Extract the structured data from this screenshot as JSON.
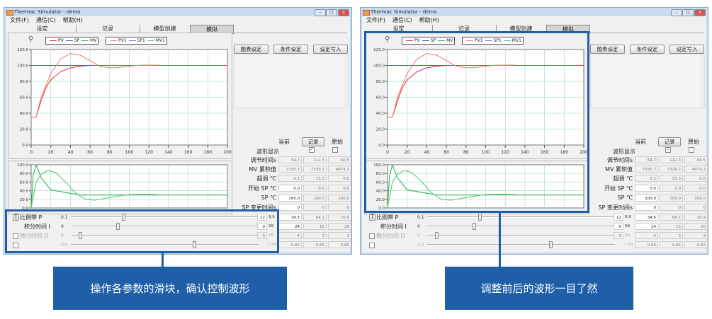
{
  "window": {
    "title": "Thermac Simulator - demo",
    "menu": [
      "文件(F)",
      "通信(C)",
      "帮助(H)"
    ],
    "tabs": [
      {
        "label": "设定"
      },
      {
        "label": "记录"
      },
      {
        "label": "模型创建"
      },
      {
        "label": "模拟",
        "active": true
      }
    ],
    "legend_current": [
      {
        "name": "PV",
        "color": "#e8383b"
      },
      {
        "name": "SP",
        "color": "#3a5fc8"
      },
      {
        "name": "MV",
        "color": "#2fb35a"
      }
    ],
    "legend_record": [
      {
        "name": "PV1",
        "color": "#f08080"
      },
      {
        "name": "SP1",
        "color": "#6a7fd0"
      },
      {
        "name": "MV1",
        "color": "#5cc87a"
      }
    ],
    "buttons": {
      "chart_settings": "图表设定",
      "condition_settings": "条件设定",
      "write_settings": "设定写入",
      "record": "记录"
    },
    "table": {
      "headers": {
        "current": "当前",
        "original": "原始"
      },
      "waveform_label": "波形显示",
      "waveform_record_checked": true,
      "waveform_original_checked": false,
      "rows": [
        {
          "label": "调节时间s",
          "values": [
            "54.7",
            "112.3",
            "60.5"
          ],
          "editable": false
        },
        {
          "label": "MV 累积值",
          "values": [
            "7155.7",
            "7329.2",
            "4074.2"
          ],
          "editable": false
        },
        {
          "label": "超调 ℃",
          "values": [
            "0.1",
            "15.3",
            "0.0"
          ],
          "editable": false
        },
        {
          "label": "开始 SP ℃",
          "values": [
            "0.0",
            "0.0",
            "0.0"
          ],
          "editable": true
        },
        {
          "label": "SP ℃",
          "values": [
            "100.0",
            "100.0",
            "100.0"
          ],
          "editable": true
        },
        {
          "label": "SP 变更时间s",
          "values": [
            "0",
            "0",
            "0"
          ],
          "editable": true
        },
        {
          "label": "",
          "values": [
            "34.5",
            "64.1",
            "20.9"
          ],
          "editable": true
        },
        {
          "label": "",
          "values": [
            "24",
            "15",
            "20"
          ],
          "editable": true
        },
        {
          "label": "",
          "values": [
            "4",
            "3",
            "3"
          ],
          "editable": false
        },
        {
          "label": "",
          "values": [
            "0.65",
            "0.65",
            "0.65"
          ],
          "editable": false
        }
      ]
    },
    "sliders": [
      {
        "label": "比例带 P",
        "min": "0.1",
        "max": "9.9",
        "value": "12",
        "position": 0.27,
        "enabled": true,
        "checkbox": "button"
      },
      {
        "label": "积分时间 I",
        "min": "0",
        "max": "99",
        "value": "0",
        "position": 0.24,
        "enabled": true,
        "checkbox": "none"
      },
      {
        "label": "微分时间 D",
        "min": "0",
        "max": "99",
        "value": "0",
        "position": 0.04,
        "enabled": false,
        "checkbox": "box"
      },
      {
        "label": "",
        "min": "0.0",
        "max": "1.00",
        "value": "",
        "position": 0.65,
        "enabled": false,
        "checkbox": "box"
      }
    ]
  },
  "chart_data": [
    {
      "type": "line",
      "title": "",
      "xlim": [
        0,
        200
      ],
      "ylim": [
        0,
        120
      ],
      "xticks": [
        0,
        20,
        40,
        60,
        80,
        100,
        120,
        140,
        160,
        180,
        200
      ],
      "yticks": [
        "120.0",
        "100.0",
        "80.0",
        "60.0",
        "40.0",
        "20.0",
        "0.0"
      ],
      "series": [
        {
          "name": "PV",
          "color": "#e8383b",
          "points": [
            [
              0,
              35
            ],
            [
              5,
              35
            ],
            [
              10,
              55
            ],
            [
              15,
              72
            ],
            [
              20,
              82
            ],
            [
              30,
              92
            ],
            [
              40,
              97
            ],
            [
              50,
              99
            ],
            [
              60,
              100
            ],
            [
              200,
              100
            ]
          ]
        },
        {
          "name": "SP",
          "color": "#3a5fc8",
          "points": [
            [
              0,
              100
            ],
            [
              63,
              100
            ]
          ]
        },
        {
          "name": "PV1",
          "color": "#f08080",
          "points": [
            [
              0,
              35
            ],
            [
              5,
              35
            ],
            [
              10,
              60
            ],
            [
              20,
              90
            ],
            [
              30,
              108
            ],
            [
              40,
              115
            ],
            [
              50,
              113
            ],
            [
              60,
              106
            ],
            [
              70,
              99
            ],
            [
              80,
              97
            ],
            [
              90,
              97.5
            ],
            [
              100,
              99
            ],
            [
              110,
              100.3
            ],
            [
              130,
              100.5
            ]
          ]
        }
      ]
    },
    {
      "type": "line",
      "title": "",
      "xlim": [
        0,
        200
      ],
      "ylim": [
        0,
        100
      ],
      "yticks": [
        "100.0",
        "80.0",
        "60.0",
        "40.0",
        "20.0",
        "0.0"
      ],
      "series": [
        {
          "name": "MV",
          "color": "#2fb35a",
          "points": [
            [
              0,
              0
            ],
            [
              2,
              75
            ],
            [
              5,
              100
            ],
            [
              10,
              70
            ],
            [
              20,
              42
            ],
            [
              30,
              38
            ],
            [
              40,
              34
            ],
            [
              50,
              30
            ],
            [
              200,
              30
            ]
          ]
        },
        {
          "name": "MV1",
          "color": "#5cc87a",
          "points": [
            [
              0,
              0
            ],
            [
              5,
              60
            ],
            [
              10,
              78
            ],
            [
              17,
              87
            ],
            [
              25,
              82
            ],
            [
              35,
              60
            ],
            [
              45,
              35
            ],
            [
              55,
              20
            ],
            [
              65,
              18
            ],
            [
              75,
              22
            ],
            [
              90,
              28
            ],
            [
              100,
              31
            ],
            [
              115,
              32
            ],
            [
              130,
              31
            ]
          ]
        }
      ]
    }
  ],
  "callouts": {
    "left": "操作各参数的滑块，确认控制波形",
    "right": "调整前后的波形一目了然"
  },
  "colors": {
    "accent": "#1f5fa8"
  }
}
